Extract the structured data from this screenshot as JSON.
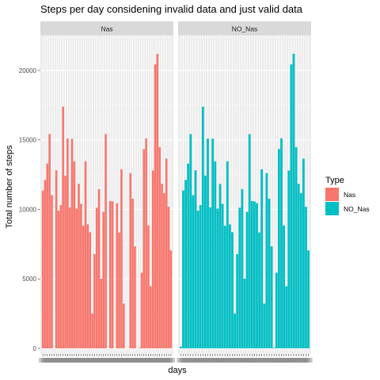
{
  "chart_data": {
    "type": "bar",
    "title": "Steps per day considening invalid data and just valid data",
    "xlabel": "days",
    "ylabel": "Total number of steps",
    "ylim": [
      0,
      22500
    ],
    "yticks": [
      0,
      5000,
      10000,
      15000,
      20000
    ],
    "ytick_labels": [
      "0",
      "5000",
      "10000",
      "15000",
      "20000"
    ],
    "grid": true,
    "legend": {
      "title": "Type",
      "placement": "right",
      "entries": [
        {
          "name": "Nas",
          "color": "#F8766D"
        },
        {
          "name": "NO_Nas",
          "color": "#00BFC4"
        }
      ]
    },
    "panels": [
      {
        "label": "Nas",
        "color": "#F8766D",
        "values": [
          11352,
          12116,
          13294,
          15420,
          11015,
          0,
          12811,
          9900,
          10304,
          17382,
          12426,
          15098,
          10139,
          15084,
          13452,
          10056,
          11829,
          10395,
          8821,
          13460,
          8918,
          8355,
          2492,
          6778,
          10119,
          11458,
          5018,
          9819,
          15414,
          0,
          10600,
          10571,
          0,
          10439,
          8334,
          12883,
          3219,
          0,
          0,
          12608,
          10765,
          7336,
          0,
          41,
          5441,
          14339,
          15110,
          8841,
          4472,
          12787,
          20427,
          21194,
          14478,
          11834,
          11162,
          13646,
          10183,
          7047
        ]
      },
      {
        "label": "NO_Nas",
        "color": "#00BFC4",
        "values": [
          126,
          11352,
          12116,
          13294,
          15420,
          11015,
          12811,
          9900,
          10304,
          17382,
          12426,
          15098,
          10139,
          15084,
          13452,
          10056,
          11829,
          10395,
          8821,
          13460,
          8918,
          8355,
          2492,
          6778,
          10119,
          11458,
          5018,
          9819,
          15414,
          10600,
          10571,
          10439,
          8334,
          12883,
          3219,
          12608,
          10765,
          7336,
          41,
          5441,
          14339,
          15110,
          8841,
          4472,
          12787,
          20427,
          21194,
          14478,
          11834,
          11162,
          13646,
          10183,
          7047
        ]
      }
    ]
  }
}
